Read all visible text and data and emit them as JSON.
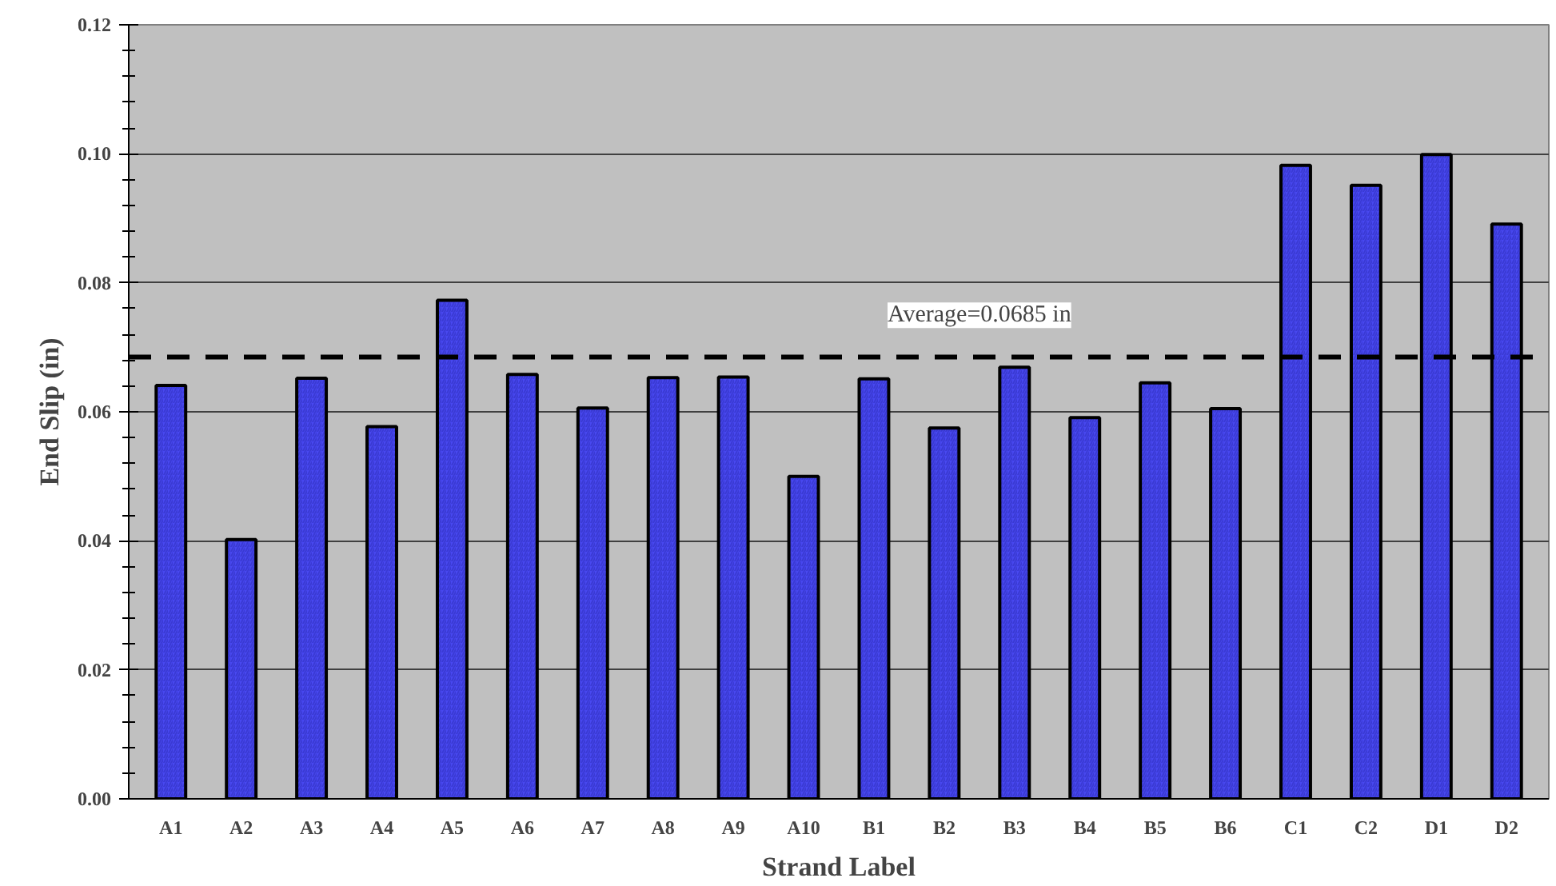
{
  "chart_data": {
    "type": "bar",
    "xlabel": "Strand Label",
    "ylabel": "End Slip (in)",
    "categories": [
      "A1",
      "A2",
      "A3",
      "A4",
      "A5",
      "A6",
      "A7",
      "A8",
      "A9",
      "A10",
      "B1",
      "B2",
      "B3",
      "B4",
      "B5",
      "B6",
      "C1",
      "C2",
      "D1",
      "D2"
    ],
    "values": [
      0.0641,
      0.0402,
      0.0652,
      0.0577,
      0.0773,
      0.0658,
      0.0606,
      0.0653,
      0.0654,
      0.05,
      0.0651,
      0.0575,
      0.0669,
      0.0591,
      0.0645,
      0.0605,
      0.0982,
      0.0951,
      0.0999,
      0.0891
    ],
    "color": "#4848f0",
    "ylim": [
      0,
      0.12
    ],
    "yticks": [
      {
        "value": 0,
        "label": "0.00"
      },
      {
        "value": 0.02,
        "label": "0.02"
      },
      {
        "value": 0.04,
        "label": "0.04"
      },
      {
        "value": 0.06,
        "label": "0.06"
      },
      {
        "value": 0.08,
        "label": "0.08"
      },
      {
        "value": 0.1,
        "label": "0.10"
      },
      {
        "value": 0.12,
        "label": "0.12"
      }
    ],
    "ref_lines": [
      {
        "axis": "y",
        "value": 0.0685,
        "label": "Average=0.0685 in",
        "color": "#000000",
        "line_style": "dashed"
      }
    ],
    "grid": "y"
  }
}
